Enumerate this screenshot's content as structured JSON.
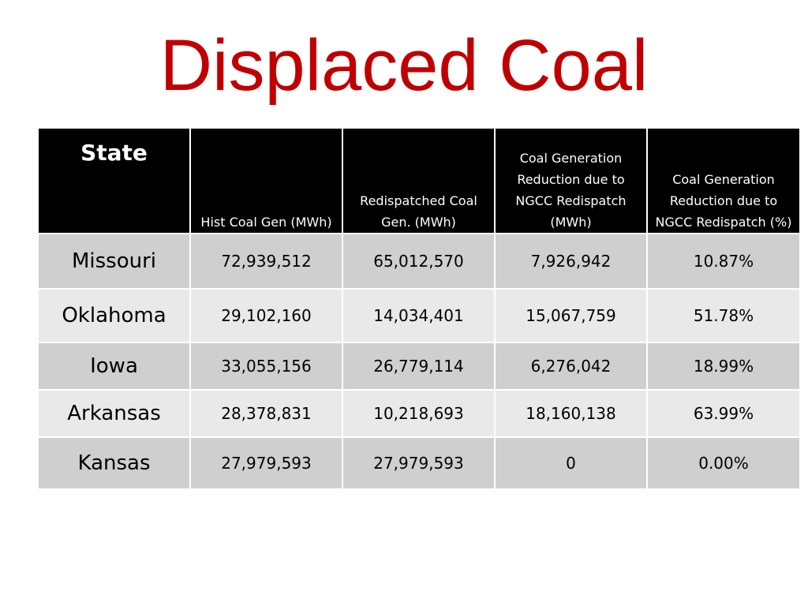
{
  "slide": {
    "title": "Displaced Coal"
  },
  "table": {
    "headers": {
      "state": "State",
      "hist": "Hist Coal Gen (MWh)",
      "redispatched": "Redispatched Coal Gen. (MWh)",
      "reduction_mwh": "Coal Generation Reduction due to NGCC Redispatch (MWh)",
      "reduction_pct": "Coal Generation Reduction due to NGCC Redispatch (%)"
    },
    "rows": [
      {
        "state": "Missouri",
        "hist": "72,939,512",
        "redispatched": "65,012,570",
        "reduction_mwh": "7,926,942",
        "reduction_pct": "10.87%"
      },
      {
        "state": "Oklahoma",
        "hist": "29,102,160",
        "redispatched": "14,034,401",
        "reduction_mwh": "15,067,759",
        "reduction_pct": "51.78%"
      },
      {
        "state": "Iowa",
        "hist": "33,055,156",
        "redispatched": "26,779,114",
        "reduction_mwh": "6,276,042",
        "reduction_pct": "18.99%"
      },
      {
        "state": "Arkansas",
        "hist": "28,378,831",
        "redispatched": "10,218,693",
        "reduction_mwh": "18,160,138",
        "reduction_pct": "63.99%"
      },
      {
        "state": "Kansas",
        "hist": "27,979,593",
        "redispatched": "27,979,593",
        "reduction_mwh": "0",
        "reduction_pct": "0.00%"
      }
    ]
  },
  "colors": {
    "title": "#c00000",
    "header_bg": "#000000",
    "row_dark": "#cfcfcf",
    "row_light": "#e9e9e9"
  }
}
